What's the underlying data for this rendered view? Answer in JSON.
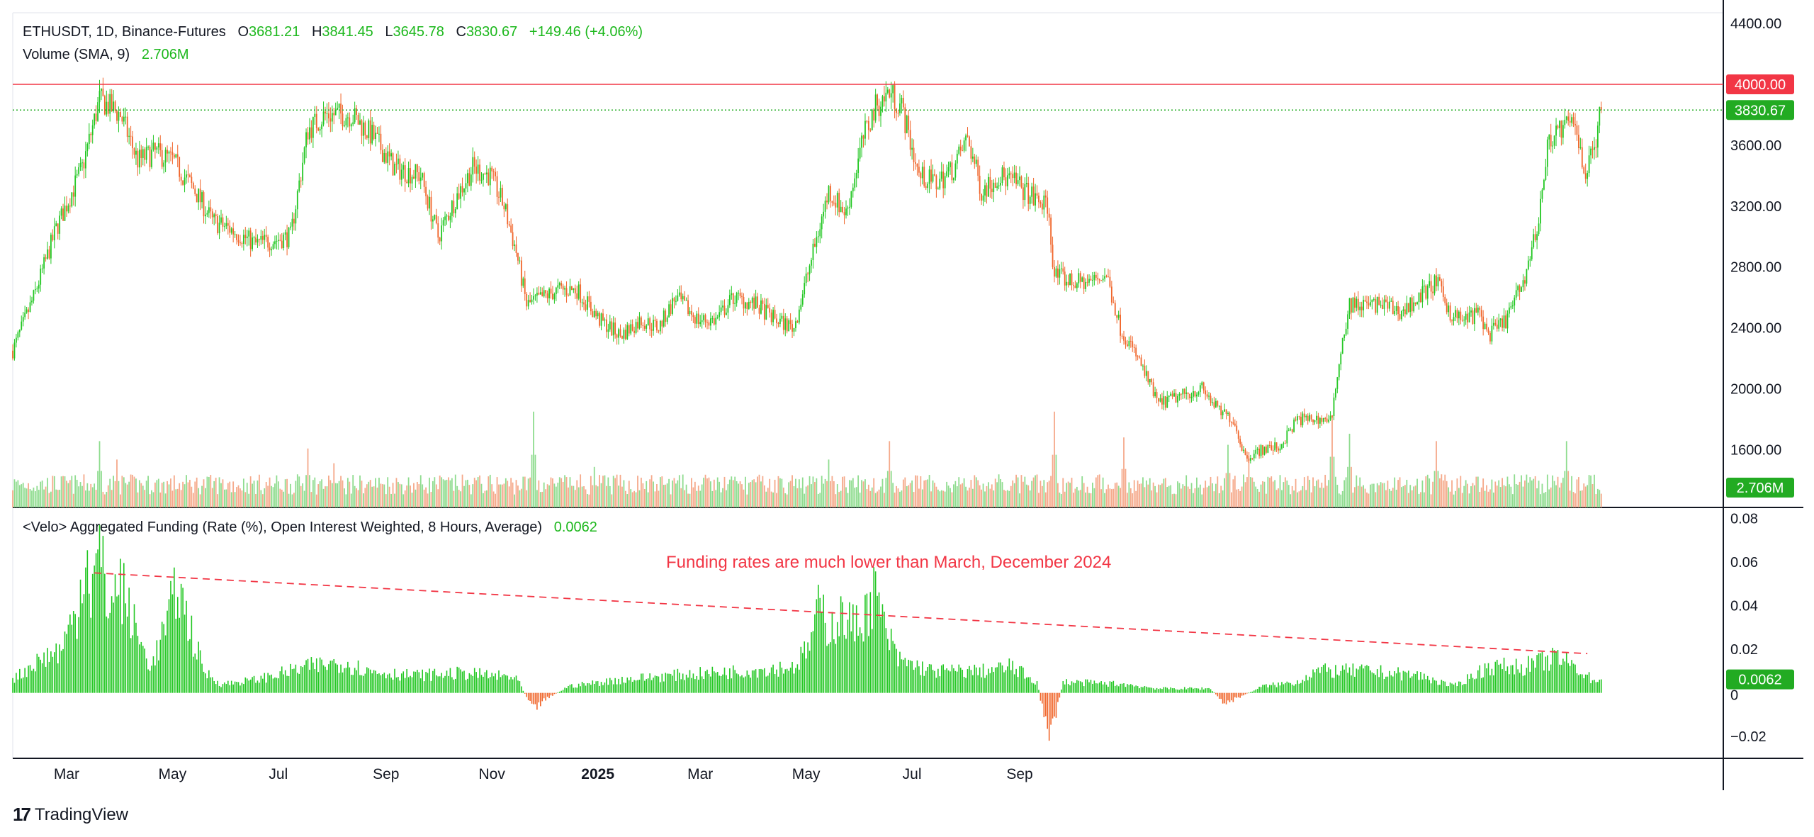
{
  "header": {
    "symbol": "ETHUSDT, 1D, Binance-Futures",
    "o_label": "O",
    "o_value": "3681.21",
    "h_label": "H",
    "h_value": "3841.45",
    "l_label": "L",
    "l_value": "3645.78",
    "c_label": "C",
    "c_value": "3830.67",
    "change": "+149.46 (+4.06%)",
    "volume_label": "Volume (SMA, 9)",
    "volume_value": "2.706M",
    "funding_label": "<Velo> Aggregated Funding (Rate (%), Open Interest Weighted, 8 Hours, Average)",
    "funding_value": "0.0062"
  },
  "annotation": "Funding rates are much lower than March, December 2024",
  "brand": "TradingView",
  "colors": {
    "up": "#22c722",
    "down": "#f0652a",
    "red_line": "#f23645",
    "green_label": "#22ab22",
    "vol_up": "#8fdc8f",
    "vol_down": "#f5a98a"
  },
  "chart_data": [
    {
      "type": "candlestick",
      "title": "ETHUSDT, 1D, Binance-Futures",
      "y_axis_ticks": [
        1600,
        2000,
        2400,
        2800,
        3200,
        3600,
        4000,
        4400
      ],
      "y_axis_labels": [
        "1600.00",
        "2000.00",
        "2400.00",
        "2800.00",
        "3200.00",
        "3600.00",
        "4000.00",
        "4400.00"
      ],
      "ylim": [
        1220,
        4470
      ],
      "x_axis_labels": [
        "Mar",
        "May",
        "Jul",
        "Sep",
        "Nov",
        "2025",
        "Mar",
        "May",
        "Jul",
        "Sep"
      ],
      "horizontal_line": {
        "value": 4000,
        "label": "4000.00"
      },
      "last_price": {
        "value": 3830.67,
        "label": "3830.67"
      },
      "close_anchors": [
        [
          0,
          2250
        ],
        [
          12,
          2600
        ],
        [
          25,
          3050
        ],
        [
          40,
          3450
        ],
        [
          50,
          3900
        ],
        [
          62,
          3800
        ],
        [
          72,
          3500
        ],
        [
          82,
          3550
        ],
        [
          92,
          3500
        ],
        [
          105,
          3300
        ],
        [
          115,
          3100
        ],
        [
          125,
          3050
        ],
        [
          140,
          2950
        ],
        [
          160,
          3000
        ],
        [
          170,
          3700
        ],
        [
          180,
          3800
        ],
        [
          195,
          3800
        ],
        [
          208,
          3650
        ],
        [
          220,
          3450
        ],
        [
          235,
          3400
        ],
        [
          245,
          3000
        ],
        [
          255,
          3250
        ],
        [
          265,
          3450
        ],
        [
          275,
          3400
        ],
        [
          283,
          3200
        ],
        [
          290,
          2900
        ],
        [
          296,
          2550
        ],
        [
          305,
          2600
        ],
        [
          315,
          2650
        ],
        [
          325,
          2650
        ],
        [
          338,
          2450
        ],
        [
          350,
          2350
        ],
        [
          362,
          2450
        ],
        [
          372,
          2400
        ],
        [
          382,
          2600
        ],
        [
          395,
          2450
        ],
        [
          405,
          2450
        ],
        [
          415,
          2600
        ],
        [
          428,
          2550
        ],
        [
          440,
          2450
        ],
        [
          450,
          2400
        ],
        [
          460,
          2850
        ],
        [
          470,
          3300
        ],
        [
          480,
          3150
        ],
        [
          490,
          3650
        ],
        [
          497,
          3850
        ],
        [
          505,
          3950
        ],
        [
          512,
          3850
        ],
        [
          522,
          3400
        ],
        [
          532,
          3350
        ],
        [
          542,
          3450
        ],
        [
          550,
          3650
        ],
        [
          558,
          3300
        ],
        [
          568,
          3400
        ],
        [
          578,
          3350
        ],
        [
          588,
          3250
        ],
        [
          596,
          3200
        ],
        [
          600,
          2750
        ],
        [
          610,
          2700
        ],
        [
          620,
          2700
        ],
        [
          630,
          2750
        ],
        [
          638,
          2400
        ],
        [
          648,
          2200
        ],
        [
          660,
          1900
        ],
        [
          672,
          1950
        ],
        [
          685,
          2000
        ],
        [
          695,
          1850
        ],
        [
          703,
          1800
        ],
        [
          710,
          1550
        ],
        [
          720,
          1600
        ],
        [
          730,
          1620
        ],
        [
          740,
          1800
        ],
        [
          750,
          1800
        ],
        [
          760,
          1800
        ],
        [
          764,
          2200
        ],
        [
          770,
          2550
        ],
        [
          780,
          2550
        ],
        [
          790,
          2550
        ],
        [
          800,
          2500
        ],
        [
          810,
          2600
        ],
        [
          820,
          2700
        ],
        [
          828,
          2500
        ],
        [
          835,
          2450
        ],
        [
          845,
          2500
        ],
        [
          850,
          2350
        ],
        [
          860,
          2450
        ],
        [
          870,
          2700
        ],
        [
          878,
          3050
        ],
        [
          885,
          3650
        ],
        [
          892,
          3700
        ],
        [
          900,
          3750
        ],
        [
          906,
          3400
        ],
        [
          912,
          3650
        ],
        [
          915,
          3830
        ]
      ],
      "volume": {
        "label": "Volume (SMA, 9)",
        "last_value_label": "2.706M",
        "spikes": [
          {
            "bar": 50,
            "value": 1.8
          },
          {
            "bar": 60,
            "value": 1.3
          },
          {
            "bar": 170,
            "value": 1.6
          },
          {
            "bar": 185,
            "value": 1.2
          },
          {
            "bar": 300,
            "value": 2.6
          },
          {
            "bar": 335,
            "value": 1.1
          },
          {
            "bar": 470,
            "value": 1.3
          },
          {
            "bar": 505,
            "value": 1.8
          },
          {
            "bar": 600,
            "value": 2.6
          },
          {
            "bar": 640,
            "value": 1.9
          },
          {
            "bar": 700,
            "value": 1.7
          },
          {
            "bar": 712,
            "value": 1.5
          },
          {
            "bar": 760,
            "value": 2.5
          },
          {
            "bar": 770,
            "value": 2.0
          },
          {
            "bar": 820,
            "value": 1.8
          },
          {
            "bar": 895,
            "value": 1.8
          }
        ]
      }
    },
    {
      "type": "bar",
      "title": "<Velo> Aggregated Funding (Rate (%), Open Interest Weighted, 8 Hours, Average)",
      "y_axis_ticks": [
        -0.02,
        0,
        0.02,
        0.04,
        0.06,
        0.08
      ],
      "y_axis_labels": [
        "−0.02",
        "0",
        "0.02",
        "0.04",
        "0.06",
        "0.08"
      ],
      "ylim": [
        -0.03,
        0.085
      ],
      "last_value": {
        "value": 0.0062,
        "label": "0.0062"
      },
      "funding_anchors": [
        [
          0,
          0.006
        ],
        [
          15,
          0.015
        ],
        [
          28,
          0.02
        ],
        [
          38,
          0.04
        ],
        [
          42,
          0.07
        ],
        [
          45,
          0.045
        ],
        [
          50,
          0.065
        ],
        [
          55,
          0.04
        ],
        [
          62,
          0.05
        ],
        [
          68,
          0.035
        ],
        [
          75,
          0.02
        ],
        [
          80,
          0.012
        ],
        [
          90,
          0.035
        ],
        [
          95,
          0.05
        ],
        [
          100,
          0.035
        ],
        [
          110,
          0.01
        ],
        [
          120,
          0.004
        ],
        [
          140,
          0.006
        ],
        [
          170,
          0.012
        ],
        [
          190,
          0.014
        ],
        [
          205,
          0.01
        ],
        [
          230,
          0.008
        ],
        [
          260,
          0.009
        ],
        [
          290,
          0.007
        ],
        [
          300,
          -0.008
        ],
        [
          305,
          -0.004
        ],
        [
          320,
          0.003
        ],
        [
          350,
          0.006
        ],
        [
          380,
          0.008
        ],
        [
          420,
          0.01
        ],
        [
          450,
          0.012
        ],
        [
          458,
          0.02
        ],
        [
          465,
          0.04
        ],
        [
          470,
          0.03
        ],
        [
          478,
          0.035
        ],
        [
          485,
          0.03
        ],
        [
          492,
          0.038
        ],
        [
          497,
          0.046
        ],
        [
          502,
          0.03
        ],
        [
          510,
          0.015
        ],
        [
          530,
          0.01
        ],
        [
          560,
          0.01
        ],
        [
          575,
          0.012
        ],
        [
          590,
          0.005
        ],
        [
          597,
          -0.022
        ],
        [
          605,
          0.005
        ],
        [
          640,
          0.004
        ],
        [
          660,
          0.002
        ],
        [
          690,
          0.002
        ],
        [
          698,
          -0.005
        ],
        [
          720,
          0.003
        ],
        [
          740,
          0.005
        ],
        [
          750,
          0.01
        ],
        [
          780,
          0.01
        ],
        [
          810,
          0.008
        ],
        [
          830,
          0.003
        ],
        [
          850,
          0.012
        ],
        [
          870,
          0.012
        ],
        [
          880,
          0.014
        ],
        [
          890,
          0.016
        ],
        [
          900,
          0.012
        ],
        [
          910,
          0.006
        ],
        [
          915,
          0.0062
        ]
      ],
      "trendline": {
        "from": {
          "bar": 47,
          "value": 0.055
        },
        "to": {
          "bar": 907,
          "value": 0.018
        },
        "style": "dashed",
        "color": "#f23645"
      }
    }
  ]
}
